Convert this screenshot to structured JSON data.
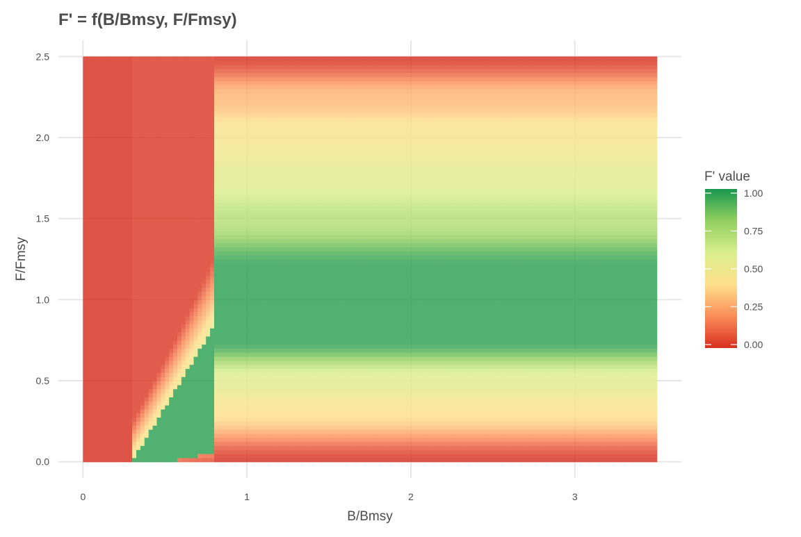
{
  "chart_data": {
    "type": "heatmap",
    "title": "F' = f(B/Bmsy, F/Fmsy)",
    "xlabel": "B/Bmsy",
    "ylabel": "F/Fmsy",
    "xlim": [
      -0.15,
      3.65
    ],
    "ylim": [
      -0.1,
      2.6
    ],
    "x_domain": [
      0,
      3.5
    ],
    "y_domain": [
      0,
      2.5
    ],
    "x_ticks": [
      0,
      1,
      2,
      3
    ],
    "x_tick_labels": [
      "0",
      "1",
      "2",
      "3"
    ],
    "y_ticks": [
      0.0,
      0.5,
      1.0,
      1.5,
      2.0,
      2.5
    ],
    "y_tick_labels": [
      "0.0",
      "0.5",
      "1.0",
      "1.5",
      "2.0",
      "2.5"
    ],
    "grid": true,
    "legend": {
      "title": "F' value",
      "position": "right",
      "ticks": [
        0.0,
        0.25,
        0.5,
        0.75,
        1.0
      ],
      "tick_labels": [
        "0.00",
        "0.25",
        "0.50",
        "0.75",
        "1.00"
      ],
      "colors": [
        "#d7301f",
        "#fc8d59",
        "#fee08b",
        "#d9ef8b",
        "#91cf60",
        "#1a9850"
      ]
    },
    "regions": [
      {
        "x": [
          0,
          0.3
        ],
        "value": 0.0
      },
      {
        "x": [
          0.3,
          0.8
        ],
        "description_values": "ramp from red toward 1.0 along F/Fmsy ≈ (B/Bmsy - 0.3)/0.6"
      },
      {
        "x": [
          0.8,
          3.5
        ],
        "value_by_f_fmsy": [
          [
            0.0,
            0.0
          ],
          [
            0.3,
            0.4
          ],
          [
            0.5,
            0.55
          ],
          [
            0.75,
            0.97
          ],
          [
            1.2,
            0.97
          ],
          [
            1.5,
            0.7
          ],
          [
            1.75,
            0.55
          ],
          [
            2.0,
            0.45
          ],
          [
            2.25,
            0.3
          ],
          [
            2.5,
            0.0
          ]
        ]
      }
    ]
  }
}
